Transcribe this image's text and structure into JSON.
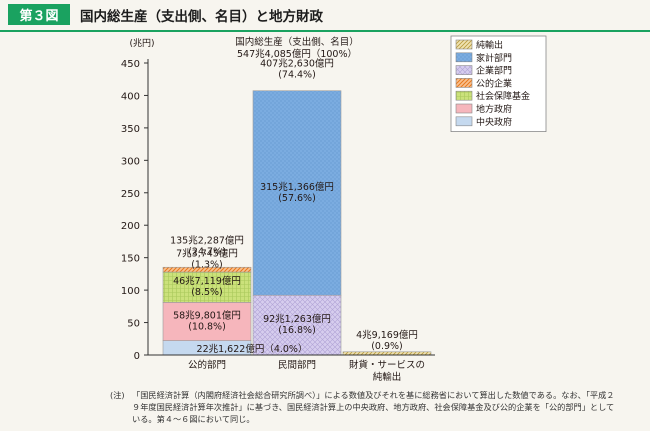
{
  "header": {
    "badge": "第３図",
    "title": "国内総生産（支出側、名目）と地方財政"
  },
  "note": {
    "label": "(注)",
    "text": "「国民経済計算（内閣府経済社会総合研究所調べ）」による数値及びそれを基に総務省において算出した数値である。なお、「平成２９年度国民経済計算年次推計」に基づき、国民経済計算上の中央政府、地方政府、社会保障基金及び公的企業を「公的部門」としている。第４～６図において同じ。"
  },
  "chart_data": {
    "type": "bar",
    "stacked": true,
    "unit_label": "(兆円)",
    "ylim": [
      0,
      450
    ],
    "yticks": [
      0,
      50,
      100,
      150,
      200,
      250,
      300,
      350,
      400,
      450
    ],
    "categories": [
      {
        "label": "公的部門",
        "label2": ""
      },
      {
        "label": "民間部門",
        "label2": ""
      },
      {
        "label": "財貨・サービスの",
        "label2": "純輸出"
      }
    ],
    "series": [
      {
        "name": "中央政府",
        "key": "central",
        "color": "#c5d9ef",
        "pattern": "none",
        "values": [
          22.1622,
          0,
          0
        ]
      },
      {
        "name": "地方政府",
        "key": "local",
        "color": "#f6b6bc",
        "pattern": "none",
        "values": [
          58.9801,
          0,
          0
        ]
      },
      {
        "name": "社会保障基金",
        "key": "social",
        "color": "#cbe17b",
        "pattern": "grid",
        "values": [
          46.7119,
          0,
          0
        ]
      },
      {
        "name": "公的企業",
        "key": "pubcorp",
        "color": "#f6a86b",
        "pattern": "diag",
        "values": [
          7.3745,
          0,
          0
        ]
      },
      {
        "name": "企業部門",
        "key": "corp",
        "color": "#cdc3e6",
        "pattern": "cross",
        "values": [
          0,
          92.1263,
          0
        ]
      },
      {
        "name": "家計部門",
        "key": "household",
        "color": "#7bace0",
        "pattern": "dots",
        "values": [
          0,
          315.1366,
          0
        ]
      },
      {
        "name": "純輸出",
        "key": "netexp",
        "color": "#e6d28e",
        "pattern": "diag2",
        "values": [
          0,
          0,
          4.9169
        ]
      }
    ],
    "total": {
      "line1": "国内総生産（支出側、名目）",
      "line2": "547兆4,085億円（100%）",
      "value": 547.4085
    },
    "data_labels": [
      {
        "line1": "22兆1,622億円（4.0%）",
        "line2": "",
        "bar": 0,
        "series": "central"
      },
      {
        "line1": "58兆9,801億円",
        "line2": "(10.8%)",
        "bar": 0,
        "series": "local"
      },
      {
        "line1": "46兆7,119億円",
        "line2": "(8.5%)",
        "bar": 0,
        "series": "social"
      },
      {
        "line1": "7兆3,745億円",
        "line2": "(1.3%)",
        "bar": 0,
        "series": "pubcorp"
      },
      {
        "line1": "135兆2,287億円",
        "line2": "(24.7%)",
        "bar": 0,
        "series": "sum"
      },
      {
        "line1": "92兆1,263億円",
        "line2": "(16.8%)",
        "bar": 1,
        "series": "corp"
      },
      {
        "line1": "315兆1,366億円",
        "line2": "(57.6%)",
        "bar": 1,
        "series": "household"
      },
      {
        "line1": "407兆2,630億円",
        "line2": "(74.4%)",
        "bar": 1,
        "series": "sum"
      },
      {
        "line1": "4兆9,169億円",
        "line2": "(0.9%)",
        "bar": 2,
        "series": "netexp"
      }
    ],
    "legend": {
      "placement": "top-right",
      "items": [
        {
          "name": "純輸出",
          "key": "netexp"
        },
        {
          "name": "家計部門",
          "key": "household"
        },
        {
          "name": "企業部門",
          "key": "corp"
        },
        {
          "name": "公的企業",
          "key": "pubcorp"
        },
        {
          "name": "社会保障基金",
          "key": "social"
        },
        {
          "name": "地方政府",
          "key": "local"
        },
        {
          "name": "中央政府",
          "key": "central"
        }
      ]
    }
  }
}
